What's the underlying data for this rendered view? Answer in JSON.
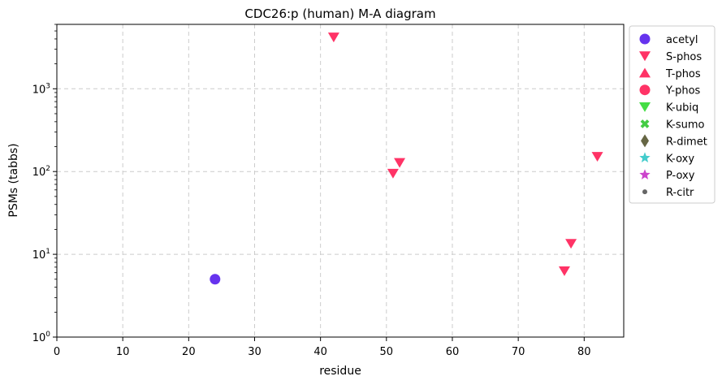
{
  "chart_data": {
    "type": "scatter",
    "title": "CDC26:p (human) M-A diagram",
    "xlabel": "residue",
    "ylabel": "PSMs (tabbs)",
    "xlim": [
      0,
      86
    ],
    "ylim": [
      1,
      6000
    ],
    "y_scale": "log",
    "grid": true,
    "legend_position": "outside-right-top",
    "x_ticks": [
      "0",
      "10",
      "20",
      "30",
      "40",
      "50",
      "60",
      "70",
      "80"
    ],
    "y_ticks": [
      {
        "base": "10",
        "exp": "0"
      },
      {
        "base": "10",
        "exp": "1"
      },
      {
        "base": "10",
        "exp": "2"
      },
      {
        "base": "10",
        "exp": "3"
      }
    ],
    "series": [
      {
        "name": "acetyl",
        "marker": "circle",
        "color": "#6633ee",
        "points": [
          {
            "x": 24,
            "y": 5
          }
        ]
      },
      {
        "name": "S-phos",
        "marker": "triangle-down",
        "color": "#ff3366",
        "points": [
          {
            "x": 42,
            "y": 4200
          },
          {
            "x": 51,
            "y": 95
          },
          {
            "x": 52,
            "y": 128
          },
          {
            "x": 77,
            "y": 6.3
          },
          {
            "x": 78,
            "y": 13.5
          },
          {
            "x": 82,
            "y": 152
          }
        ]
      },
      {
        "name": "T-phos",
        "marker": "triangle-up",
        "color": "#ff3366",
        "points": []
      },
      {
        "name": "Y-phos",
        "marker": "circle",
        "color": "#ff3366",
        "points": []
      },
      {
        "name": "K-ubiq",
        "marker": "triangle-down",
        "color": "#44dd44",
        "points": []
      },
      {
        "name": "K-sumo",
        "marker": "x",
        "color": "#44cc44",
        "points": []
      },
      {
        "name": "R-dimet",
        "marker": "diamond",
        "color": "#666644",
        "points": []
      },
      {
        "name": "K-oxy",
        "marker": "star",
        "color": "#44cccc",
        "points": []
      },
      {
        "name": "P-oxy",
        "marker": "star",
        "color": "#cc44cc",
        "points": []
      },
      {
        "name": "R-citr",
        "marker": "small-circle",
        "color": "#666666",
        "points": []
      }
    ]
  }
}
